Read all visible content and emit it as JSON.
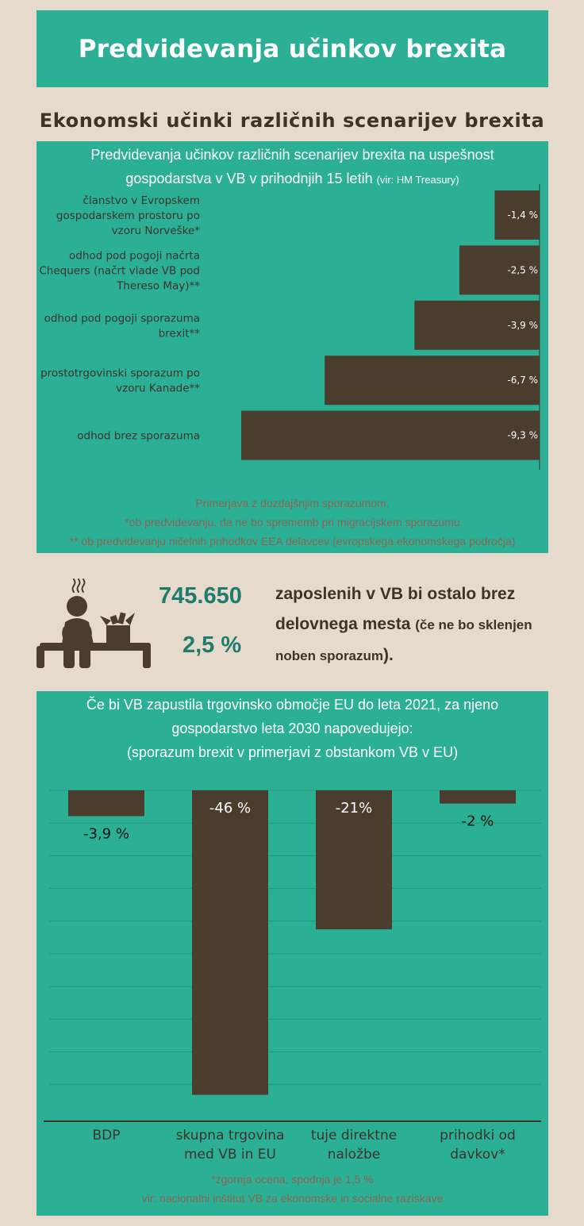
{
  "colors": {
    "background": "#e6dacc",
    "teal": "#2bb096",
    "bar": "#4a3d2e",
    "accent_number": "#1f7b6a",
    "note": "#8a6650"
  },
  "header": {
    "title": "Predvidevanja učinkov brexita"
  },
  "section": {
    "heading": "Ekonomski učinki različnih scenarijev brexita"
  },
  "chart1": {
    "title_line1": "Predvidevanja učinkov različnih scenarijev brexita na uspešnost",
    "title_line2": "gospodarstva v VB v prihodnjih 15 letih",
    "source": "(vir: HM Treasury)",
    "notes": [
      "Primerjava z dozdajšnjim sporazumom.",
      "*ob predvidevanju, da ne bo sprememb pri migracijskem sporazumu",
      "** ob predvidevanju ničelnih prihodkov EEA delavcev (evropskega ekonomskega področja)"
    ]
  },
  "chart2": {
    "title_line1": "Če bi VB zapustila trgovinsko območje EU do leta 2021, za njeno",
    "title_line2": "gospodarstvo leta 2030 napovedujejo:",
    "title_line3": "(sporazum brexit v primerjavi z obstankom VB v EU)",
    "notes": [
      "*zgornja ocena, spodnja je 1,5 %",
      "vir: nacionalni inštitut VB za ekonomske in socialne raziskave"
    ]
  },
  "jobs": {
    "number": "745.650",
    "percent": "2,5 %",
    "text_line1": "zaposlenih v VB bi ostalo brez",
    "text_line2_main": "delovnega mesta",
    "text_line2_small": "(če ne bo sklenjen",
    "text_line3_small": "noben sporazum",
    "text_line3_end": ").",
    "icon": "worried-person-with-box-icon"
  },
  "chart_data": [
    {
      "type": "bar",
      "orientation": "horizontal",
      "title": "Predvidevanja učinkov različnih scenarijev brexita na uspešnost gospodarstva v VB v prihodnjih 15 letih",
      "categories": [
        "članstvo v Evropskem gospodarskem prostoru po vzoru Norveške*",
        "odhod pod pogoji načrta Chequers (načrt vlade VB pod Thereso May)**",
        "odhod pod pogoji sporazuma brexit**",
        "prostotrgovinski sporazum po vzoru Kanade**",
        "odhod brez sporazuma"
      ],
      "category_lines": [
        [
          "članstvo v Evropskem",
          "gospodarskem prostoru po",
          "vzoru Norveške*"
        ],
        [
          "odhod pod pogoji načrta",
          "Chequers (načrt vlade VB pod",
          "Thereso May)**"
        ],
        [
          "odhod pod pogoji sporazuma",
          "brexit**"
        ],
        [
          "prostotrgovinski sporazum po",
          "vzoru Kanade**"
        ],
        [
          "odhod brez sporazuma"
        ]
      ],
      "values": [
        -1.4,
        -2.5,
        -3.9,
        -6.7,
        -9.3
      ],
      "value_labels": [
        "-1,4 %",
        "-2,5 %",
        "-3,9 %",
        "-6,7 %",
        "-9,3 %"
      ],
      "unit": "%",
      "xlim": [
        -9.3,
        0
      ]
    },
    {
      "type": "bar",
      "orientation": "vertical",
      "title": "Če bi VB zapustila trgovinsko območje EU do leta 2021, za njeno gospodarstvo leta 2030 napovedujejo: (sporazum brexit v primerjavi z obstankom VB v EU)",
      "categories": [
        "BDP",
        "skupna trgovina med VB in EU",
        "tuje direktne naložbe",
        "prihodki od davkov*"
      ],
      "category_lines": [
        [
          "BDP"
        ],
        [
          "skupna trgovina",
          "med VB in EU"
        ],
        [
          "tuje direktne",
          "naložbe"
        ],
        [
          "prihodki od",
          "davkov*"
        ]
      ],
      "values": [
        -3.9,
        -46,
        -21,
        -2
      ],
      "value_labels": [
        "-3,9 %",
        "-46 %",
        "-21%",
        "-2 %"
      ],
      "unit": "%",
      "ylim": [
        -50,
        0
      ],
      "grid": true
    }
  ]
}
